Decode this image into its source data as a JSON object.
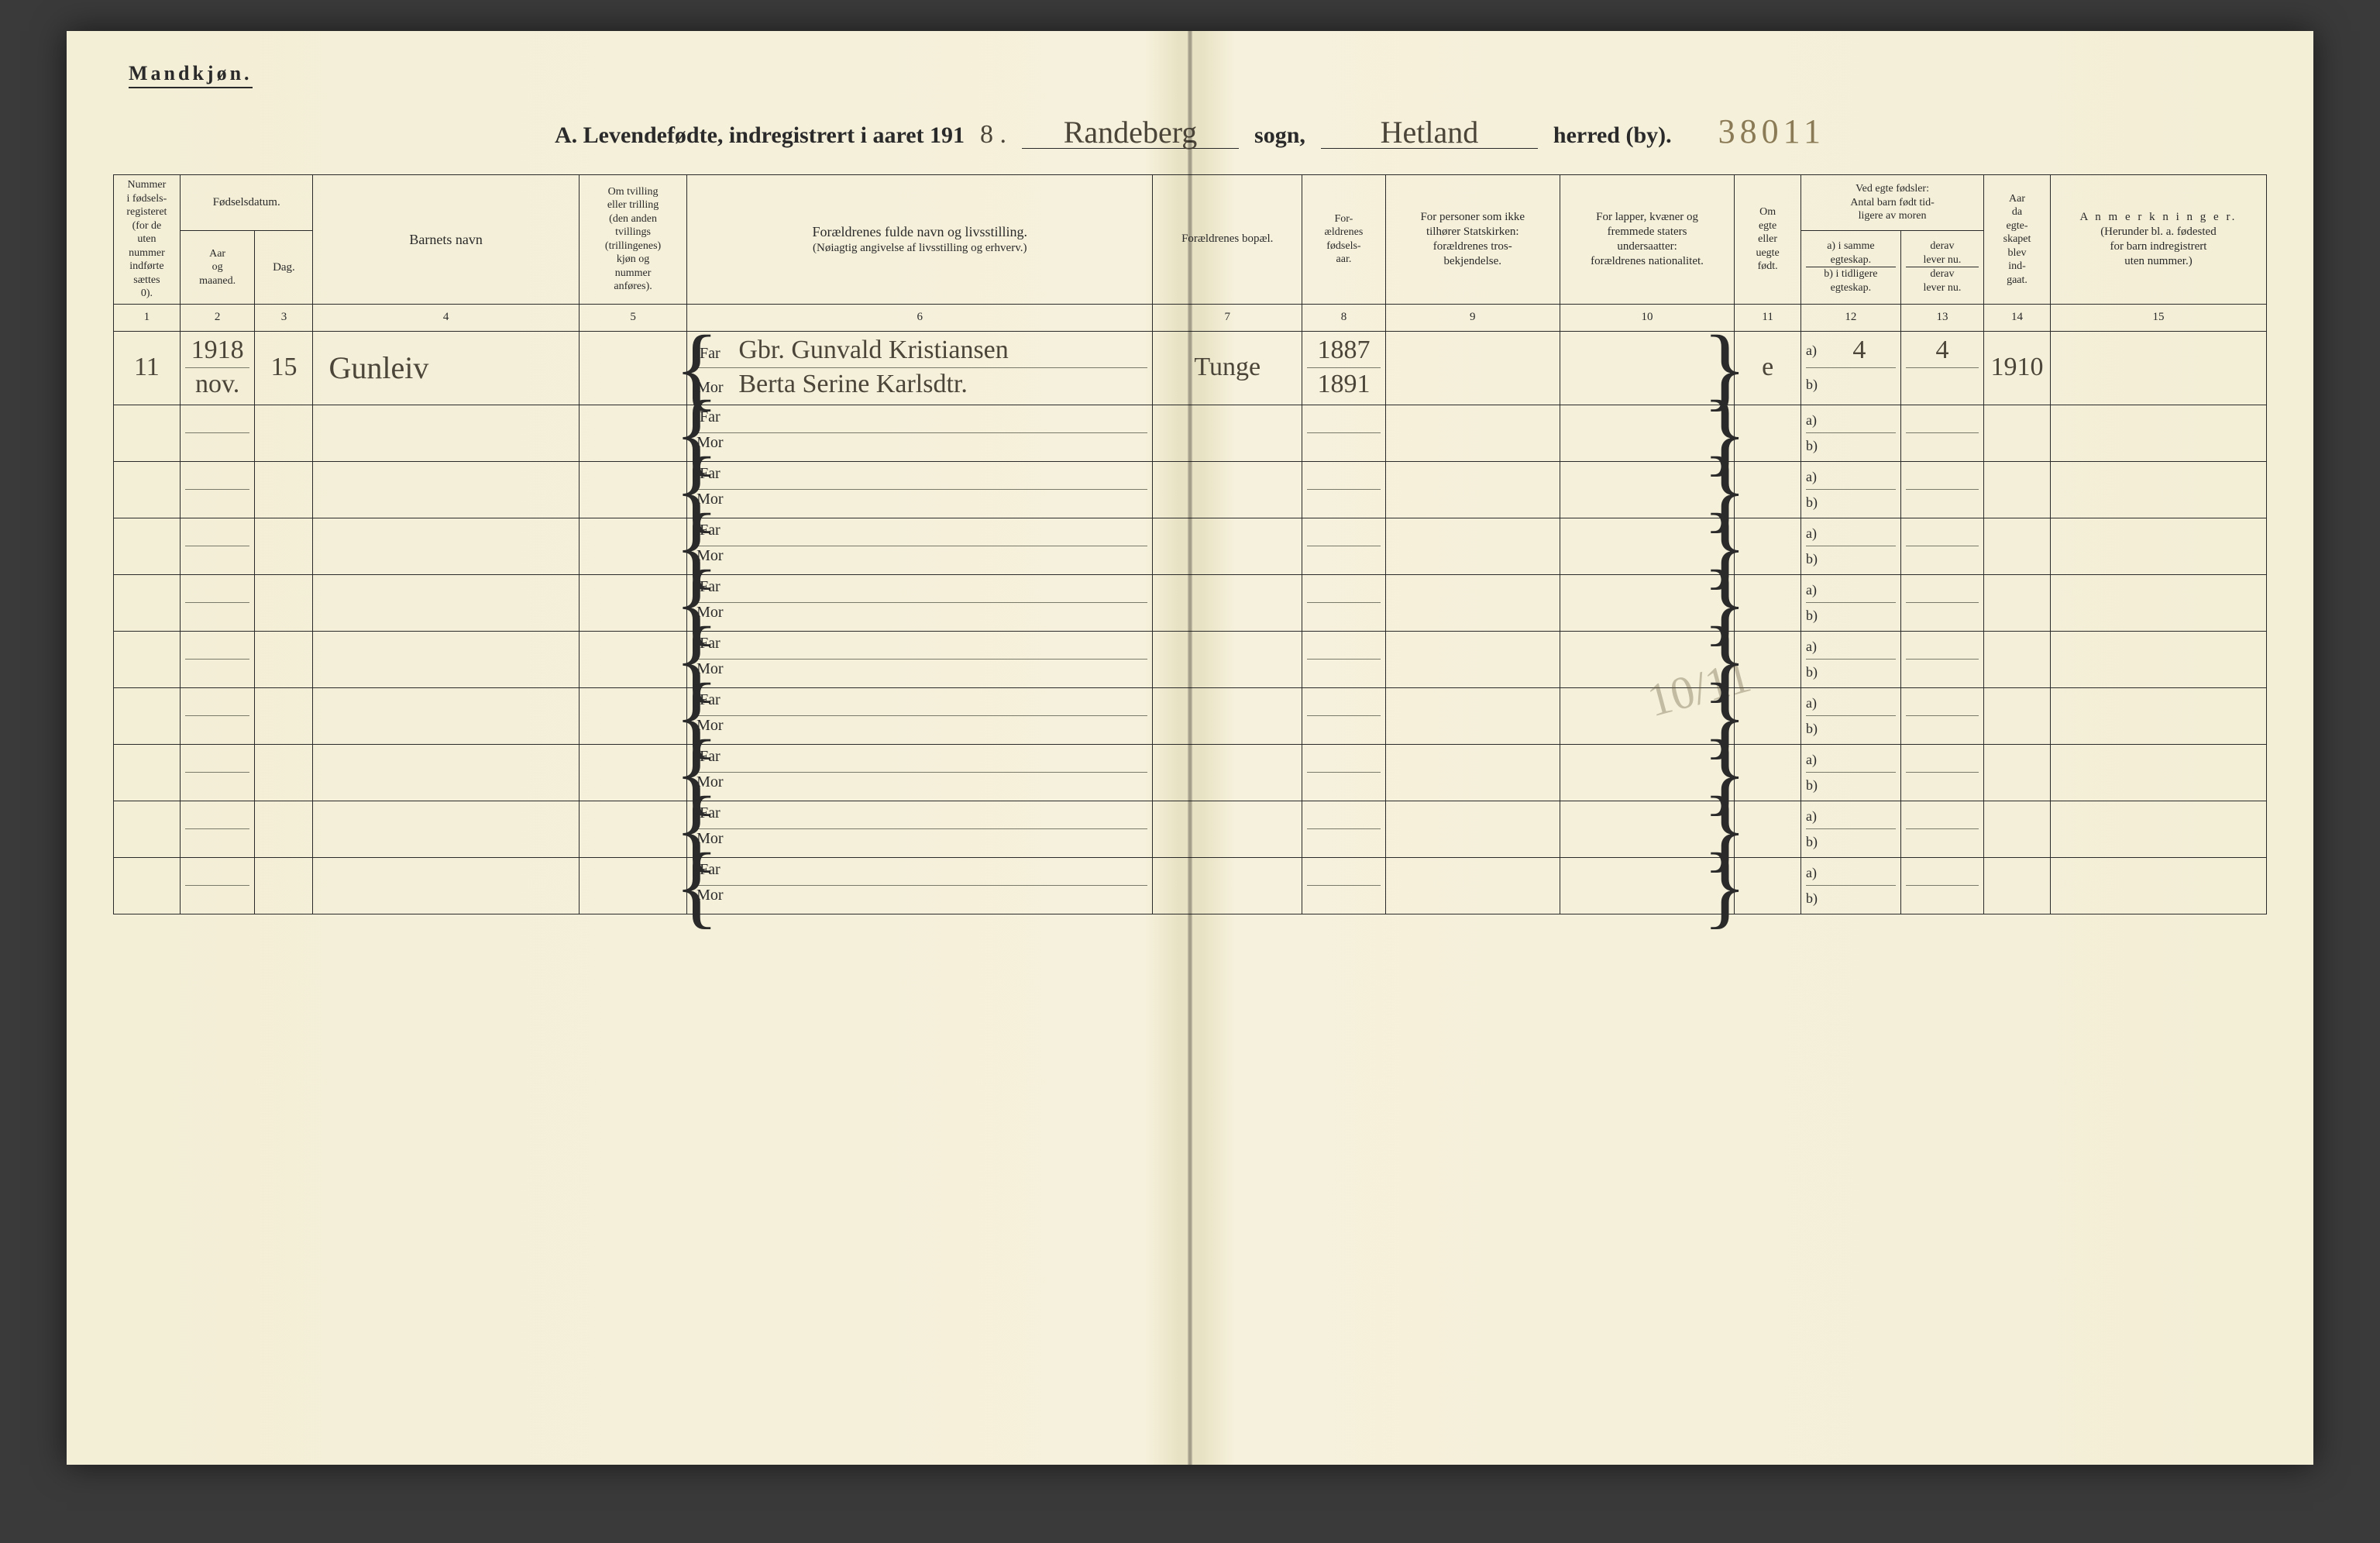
{
  "header": {
    "gender_label": "Mandkjøn.",
    "title_prefix": "A. Levendefødte, indregistrert i aaret 191",
    "year_suffix_hand": "8 .",
    "sogn_hand": "Randeberg",
    "sogn_label": "sogn,",
    "herred_hand": "Hetland",
    "herred_label": "herred (by).",
    "page_number_hand": "38011"
  },
  "columns": {
    "c1": [
      "Nummer",
      "i fødsels-",
      "registeret",
      "(for de",
      "uten",
      "nummer",
      "indførte",
      "sættes",
      "0)."
    ],
    "c2_group": "Fødselsdatum.",
    "c2": [
      "Aar",
      "og",
      "maaned."
    ],
    "c3": "Dag.",
    "c4": "Barnets navn",
    "c5": [
      "Om tvilling",
      "eller trilling",
      "(den anden",
      "tvillings",
      "(trillingenes)",
      "kjøn og",
      "nummer",
      "anføres)."
    ],
    "c6": [
      "Forældrenes fulde navn og livsstilling.",
      "(Nøiagtig angivelse af livsstilling og erhverv.)"
    ],
    "c7": "Forældrenes bopæl.",
    "c8": [
      "For-",
      "ældrenes",
      "fødsels-",
      "aar."
    ],
    "c9": [
      "For personer som ikke",
      "tilhører Statskirken:",
      "forældrenes tros-",
      "bekjendelse."
    ],
    "c10": [
      "For lapper, kvæner og",
      "fremmede staters",
      "undersaatter:",
      "forældrenes nationalitet."
    ],
    "c11": [
      "Om",
      "egte",
      "eller",
      "uegte",
      "født."
    ],
    "c12_group": [
      "Ved egte fødsler:",
      "Antal barn født tid-",
      "ligere av moren"
    ],
    "c12a": [
      "a) i samme",
      "egteskap.",
      "b) i tidligere",
      "egteskap."
    ],
    "c12b": [
      "derav",
      "lever nu.",
      "derav",
      "lever nu."
    ],
    "c14": [
      "Aar",
      "da",
      "egte-",
      "skapet",
      "blev",
      "ind-",
      "gaat."
    ],
    "c15": [
      "A n m e r k n i n g e r.",
      "(Herunder bl. a. fødested",
      "for barn indregistrert",
      "uten nummer.)"
    ]
  },
  "colnums": [
    "1",
    "2",
    "3",
    "4",
    "5",
    "6",
    "7",
    "8",
    "9",
    "10",
    "11",
    "12",
    "13",
    "14",
    "15"
  ],
  "labels": {
    "far": "Far",
    "mor": "Mor",
    "a": "a)",
    "b": "b)"
  },
  "rows": [
    {
      "num": "11",
      "year_month": "1918\nnov.",
      "day": "15",
      "name": "Gunleiv",
      "far": "Gbr. Gunvald Kristiansen",
      "mor": "Berta Serine Karlsdtr.",
      "bopel": "Tunge",
      "far_year": "1887",
      "mor_year": "1891",
      "egte": "e",
      "a_val": "4",
      "a_lever": "4",
      "year_married": "1910"
    },
    {},
    {},
    {},
    {},
    {},
    {},
    {},
    {},
    {}
  ],
  "faint_mark": "10/11",
  "style": {
    "page_bg": "#f3eed6",
    "ink": "#2a2a2a",
    "hand_ink": "#4a4538",
    "faded_ink": "#8a7a55",
    "rule_color": "#7a7a6a"
  }
}
